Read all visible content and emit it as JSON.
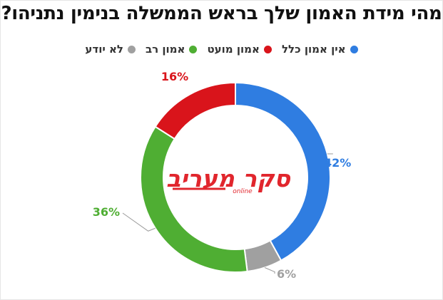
{
  "chart_data": {
    "type": "pie",
    "variant": "donut",
    "title": "מהי מידת האמון שלך בראש הממשלה בנימין נתניהו?",
    "legend_position": "top",
    "series": [
      {
        "name": "אין אמון כלל",
        "value": 42,
        "label": "42%",
        "color": "#2f7de1"
      },
      {
        "name": "אמון מועט",
        "value": 16,
        "label": "16%",
        "color": "#d9141b"
      },
      {
        "name": "אמון רב",
        "value": 36,
        "label": "36%",
        "color": "#4fae33"
      },
      {
        "name": "לא יודע",
        "value": 6,
        "label": "6%",
        "color": "#a0a0a0"
      }
    ]
  },
  "logo": {
    "main": "סקר מעריב",
    "sub": "online",
    "color": "#e1262d"
  }
}
